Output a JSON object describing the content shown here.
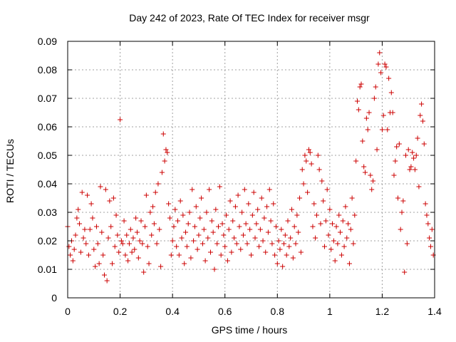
{
  "chart_data": {
    "type": "scatter",
    "title": "Day 242 of 2023, Rate Of TEC Index for receiver msgr",
    "xlabel": "GPS time / hours",
    "ylabel": "ROTI / TECUs",
    "xlim": [
      0,
      1.4
    ],
    "ylim": [
      0,
      0.09
    ],
    "x_ticks": [
      "0",
      "0.2",
      "0.4",
      "0.6",
      "0.8",
      "1",
      "1.2",
      "1.4"
    ],
    "y_ticks": [
      "0",
      "0.01",
      "0.02",
      "0.03",
      "0.04",
      "0.05",
      "0.06",
      "0.07",
      "0.08",
      "0.09"
    ],
    "grid": true,
    "marker": "+",
    "color": "#cc0000",
    "series": [
      {
        "name": "ROTI",
        "points": [
          [
            0.0,
            0.025
          ],
          [
            0.005,
            0.018
          ],
          [
            0.01,
            0.015
          ],
          [
            0.015,
            0.02
          ],
          [
            0.02,
            0.013
          ],
          [
            0.025,
            0.017
          ],
          [
            0.03,
            0.022
          ],
          [
            0.035,
            0.028
          ],
          [
            0.04,
            0.031
          ],
          [
            0.045,
            0.026
          ],
          [
            0.05,
            0.016
          ],
          [
            0.055,
            0.037
          ],
          [
            0.06,
            0.021
          ],
          [
            0.065,
            0.024
          ],
          [
            0.07,
            0.019
          ],
          [
            0.075,
            0.036
          ],
          [
            0.08,
            0.015
          ],
          [
            0.085,
            0.024
          ],
          [
            0.09,
            0.033
          ],
          [
            0.095,
            0.028
          ],
          [
            0.1,
            0.017
          ],
          [
            0.105,
            0.011
          ],
          [
            0.11,
            0.025
          ],
          [
            0.115,
            0.019
          ],
          [
            0.12,
            0.012
          ],
          [
            0.125,
            0.039
          ],
          [
            0.13,
            0.023
          ],
          [
            0.135,
            0.015
          ],
          [
            0.14,
            0.008
          ],
          [
            0.145,
            0.038
          ],
          [
            0.15,
            0.006
          ],
          [
            0.155,
            0.021
          ],
          [
            0.16,
            0.034
          ],
          [
            0.165,
            0.025
          ],
          [
            0.17,
            0.012
          ],
          [
            0.175,
            0.035
          ],
          [
            0.18,
            0.018
          ],
          [
            0.185,
            0.029
          ],
          [
            0.19,
            0.022
          ],
          [
            0.195,
            0.016
          ],
          [
            0.2,
            0.0625
          ],
          [
            0.205,
            0.02
          ],
          [
            0.21,
            0.019
          ],
          [
            0.215,
            0.027
          ],
          [
            0.22,
            0.015
          ],
          [
            0.225,
            0.022
          ],
          [
            0.23,
            0.013
          ],
          [
            0.235,
            0.019
          ],
          [
            0.24,
            0.024
          ],
          [
            0.245,
            0.016
          ],
          [
            0.25,
            0.021
          ],
          [
            0.255,
            0.017
          ],
          [
            0.26,
            0.028
          ],
          [
            0.265,
            0.023
          ],
          [
            0.27,
            0.014
          ],
          [
            0.275,
            0.02
          ],
          [
            0.28,
            0.027
          ],
          [
            0.285,
            0.019
          ],
          [
            0.29,
            0.009
          ],
          [
            0.295,
            0.025
          ],
          [
            0.3,
            0.036
          ],
          [
            0.305,
            0.018
          ],
          [
            0.31,
            0.012
          ],
          [
            0.315,
            0.03
          ],
          [
            0.32,
            0.022
          ],
          [
            0.325,
            0.032
          ],
          [
            0.33,
            0.026
          ],
          [
            0.335,
            0.037
          ],
          [
            0.34,
            0.019
          ],
          [
            0.345,
            0.04
          ],
          [
            0.35,
            0.024
          ],
          [
            0.355,
            0.011
          ],
          [
            0.36,
            0.044
          ],
          [
            0.365,
            0.0575
          ],
          [
            0.37,
            0.048
          ],
          [
            0.375,
            0.052
          ],
          [
            0.38,
            0.051
          ],
          [
            0.385,
            0.033
          ],
          [
            0.39,
            0.028
          ],
          [
            0.395,
            0.015
          ],
          [
            0.4,
            0.02
          ],
          [
            0.405,
            0.025
          ],
          [
            0.41,
            0.031
          ],
          [
            0.415,
            0.018
          ],
          [
            0.42,
            0.027
          ],
          [
            0.425,
            0.015
          ],
          [
            0.43,
            0.034
          ],
          [
            0.435,
            0.021
          ],
          [
            0.44,
            0.029
          ],
          [
            0.445,
            0.012
          ],
          [
            0.45,
            0.023
          ],
          [
            0.455,
            0.018
          ],
          [
            0.46,
            0.026
          ],
          [
            0.465,
            0.03
          ],
          [
            0.47,
            0.014
          ],
          [
            0.475,
            0.038
          ],
          [
            0.48,
            0.02
          ],
          [
            0.485,
            0.025
          ],
          [
            0.49,
            0.032
          ],
          [
            0.495,
            0.017
          ],
          [
            0.5,
            0.022
          ],
          [
            0.505,
            0.028
          ],
          [
            0.51,
            0.035
          ],
          [
            0.515,
            0.019
          ],
          [
            0.52,
            0.024
          ],
          [
            0.525,
            0.013
          ],
          [
            0.53,
            0.03
          ],
          [
            0.535,
            0.021
          ],
          [
            0.54,
            0.038
          ],
          [
            0.545,
            0.016
          ],
          [
            0.55,
            0.027
          ],
          [
            0.555,
            0.023
          ],
          [
            0.56,
            0.01
          ],
          [
            0.565,
            0.031
          ],
          [
            0.57,
            0.019
          ],
          [
            0.575,
            0.025
          ],
          [
            0.58,
            0.039
          ],
          [
            0.585,
            0.015
          ],
          [
            0.59,
            0.026
          ],
          [
            0.595,
            0.022
          ],
          [
            0.6,
            0.018
          ],
          [
            0.605,
            0.029
          ],
          [
            0.61,
            0.013
          ],
          [
            0.615,
            0.024
          ],
          [
            0.62,
            0.034
          ],
          [
            0.625,
            0.016
          ],
          [
            0.63,
            0.027
          ],
          [
            0.635,
            0.021
          ],
          [
            0.64,
            0.032
          ],
          [
            0.645,
            0.019
          ],
          [
            0.65,
            0.036
          ],
          [
            0.655,
            0.025
          ],
          [
            0.66,
            0.017
          ],
          [
            0.665,
            0.03
          ],
          [
            0.67,
            0.022
          ],
          [
            0.675,
            0.038
          ],
          [
            0.68,
            0.026
          ],
          [
            0.685,
            0.019
          ],
          [
            0.69,
            0.033
          ],
          [
            0.695,
            0.024
          ],
          [
            0.7,
            0.015
          ],
          [
            0.705,
            0.029
          ],
          [
            0.71,
            0.037
          ],
          [
            0.715,
            0.021
          ],
          [
            0.72,
            0.026
          ],
          [
            0.725,
            0.031
          ],
          [
            0.73,
            0.018
          ],
          [
            0.735,
            0.024
          ],
          [
            0.74,
            0.035
          ],
          [
            0.745,
            0.02
          ],
          [
            0.75,
            0.028
          ],
          [
            0.755,
            0.016
          ],
          [
            0.76,
            0.032
          ],
          [
            0.765,
            0.023
          ],
          [
            0.77,
            0.038
          ],
          [
            0.775,
            0.027
          ],
          [
            0.78,
            0.019
          ],
          [
            0.785,
            0.033
          ],
          [
            0.79,
            0.015
          ],
          [
            0.795,
            0.025
          ],
          [
            0.8,
            0.012
          ],
          [
            0.805,
            0.02
          ],
          [
            0.81,
            0.017
          ],
          [
            0.815,
            0.024
          ],
          [
            0.82,
            0.011
          ],
          [
            0.825,
            0.019
          ],
          [
            0.83,
            0.022
          ],
          [
            0.835,
            0.015
          ],
          [
            0.84,
            0.027
          ],
          [
            0.845,
            0.018
          ],
          [
            0.85,
            0.021
          ],
          [
            0.855,
            0.031
          ],
          [
            0.86,
            0.014
          ],
          [
            0.865,
            0.025
          ],
          [
            0.87,
            0.019
          ],
          [
            0.875,
            0.029
          ],
          [
            0.88,
            0.023
          ],
          [
            0.885,
            0.035
          ],
          [
            0.89,
            0.016
          ],
          [
            0.895,
            0.045
          ],
          [
            0.9,
            0.04
          ],
          [
            0.905,
            0.05
          ],
          [
            0.91,
            0.048
          ],
          [
            0.915,
            0.037
          ],
          [
            0.92,
            0.052
          ],
          [
            0.925,
            0.051
          ],
          [
            0.93,
            0.047
          ],
          [
            0.935,
            0.025
          ],
          [
            0.94,
            0.033
          ],
          [
            0.945,
            0.021
          ],
          [
            0.95,
            0.029
          ],
          [
            0.955,
            0.05
          ],
          [
            0.96,
            0.045
          ],
          [
            0.965,
            0.026
          ],
          [
            0.97,
            0.041
          ],
          [
            0.975,
            0.034
          ],
          [
            0.98,
            0.018
          ],
          [
            0.985,
            0.027
          ],
          [
            0.99,
            0.038
          ],
          [
            0.995,
            0.022
          ],
          [
            1.0,
            0.031
          ],
          [
            1.005,
            0.017
          ],
          [
            1.01,
            0.026
          ],
          [
            1.015,
            0.02
          ],
          [
            1.02,
            0.013
          ],
          [
            1.025,
            0.025
          ],
          [
            1.03,
            0.019
          ],
          [
            1.035,
            0.029
          ],
          [
            1.04,
            0.023
          ],
          [
            1.045,
            0.015
          ],
          [
            1.05,
            0.027
          ],
          [
            1.055,
            0.018
          ],
          [
            1.06,
            0.032
          ],
          [
            1.065,
            0.021
          ],
          [
            1.07,
            0.026
          ],
          [
            1.075,
            0.012
          ],
          [
            1.08,
            0.024
          ],
          [
            1.085,
            0.035
          ],
          [
            1.09,
            0.019
          ],
          [
            1.095,
            0.029
          ],
          [
            1.1,
            0.048
          ],
          [
            1.105,
            0.069
          ],
          [
            1.11,
            0.066
          ],
          [
            1.115,
            0.074
          ],
          [
            1.12,
            0.075
          ],
          [
            1.125,
            0.055
          ],
          [
            1.13,
            0.046
          ],
          [
            1.135,
            0.044
          ],
          [
            1.14,
            0.063
          ],
          [
            1.145,
            0.059
          ],
          [
            1.15,
            0.065
          ],
          [
            1.155,
            0.043
          ],
          [
            1.16,
            0.038
          ],
          [
            1.165,
            0.041
          ],
          [
            1.17,
            0.07
          ],
          [
            1.175,
            0.074
          ],
          [
            1.18,
            0.052
          ],
          [
            1.185,
            0.082
          ],
          [
            1.19,
            0.086
          ],
          [
            1.195,
            0.079
          ],
          [
            1.2,
            0.059
          ],
          [
            1.205,
            0.064
          ],
          [
            1.21,
            0.082
          ],
          [
            1.215,
            0.081
          ],
          [
            1.22,
            0.059
          ],
          [
            1.225,
            0.077
          ],
          [
            1.23,
            0.065
          ],
          [
            1.235,
            0.072
          ],
          [
            1.24,
            0.065
          ],
          [
            1.245,
            0.043
          ],
          [
            1.25,
            0.048
          ],
          [
            1.255,
            0.053
          ],
          [
            1.26,
            0.035
          ],
          [
            1.265,
            0.054
          ],
          [
            1.27,
            0.024
          ],
          [
            1.275,
            0.03
          ],
          [
            1.28,
            0.034
          ],
          [
            1.285,
            0.009
          ],
          [
            1.29,
            0.05
          ],
          [
            1.295,
            0.019
          ],
          [
            1.3,
            0.052
          ],
          [
            1.305,
            0.045
          ],
          [
            1.31,
            0.046
          ],
          [
            1.315,
            0.051
          ],
          [
            1.32,
            0.049
          ],
          [
            1.325,
            0.045
          ],
          [
            1.33,
            0.05
          ],
          [
            1.335,
            0.056
          ],
          [
            1.34,
            0.039
          ],
          [
            1.345,
            0.064
          ],
          [
            1.35,
            0.068
          ],
          [
            1.355,
            0.062
          ],
          [
            1.36,
            0.054
          ],
          [
            1.365,
            0.033
          ],
          [
            1.37,
            0.029
          ],
          [
            1.375,
            0.026
          ],
          [
            1.38,
            0.021
          ],
          [
            1.385,
            0.018
          ],
          [
            1.39,
            0.024
          ],
          [
            1.395,
            0.015
          ]
        ]
      }
    ]
  }
}
